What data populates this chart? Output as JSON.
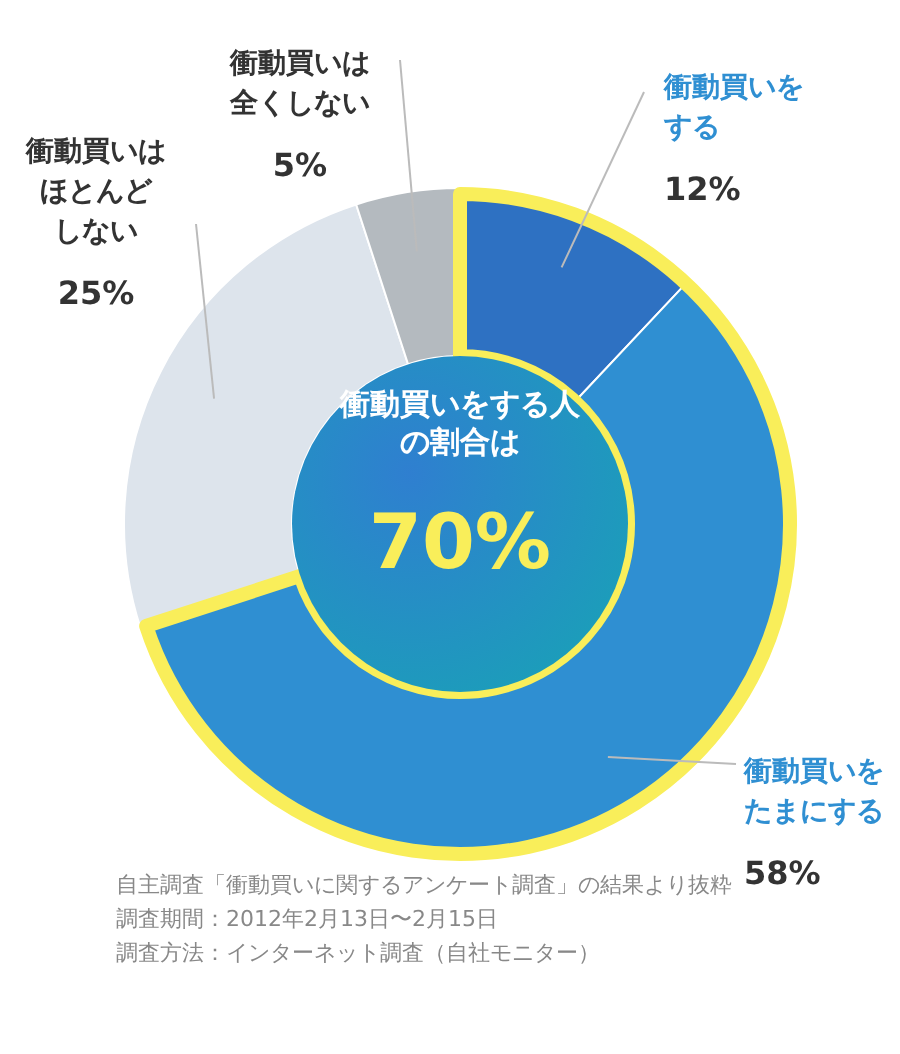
{
  "chart_data": {
    "type": "donut",
    "title": "衝動買いをする人の割合は",
    "subtitle": "70%",
    "categories": [
      "衝動買いをする",
      "衝動買いをたまにする",
      "衝動買いはほとんどしない",
      "衝動買いは全くしない"
    ],
    "values": [
      12,
      58,
      25,
      5
    ],
    "colors": [
      "#2e71c2",
      "#2f8fd2",
      "#dde4ec",
      "#b4babf"
    ],
    "value_labels": [
      "12%",
      "58%",
      "25%",
      "5%"
    ],
    "annotations": [
      "自主調査「衝動買いに関するアンケート調査」の結果より抜粋",
      "調査期間：2012年2月13日〜2月15日",
      "調査方法：インターネット調査（自社モニター）"
    ]
  }
}
